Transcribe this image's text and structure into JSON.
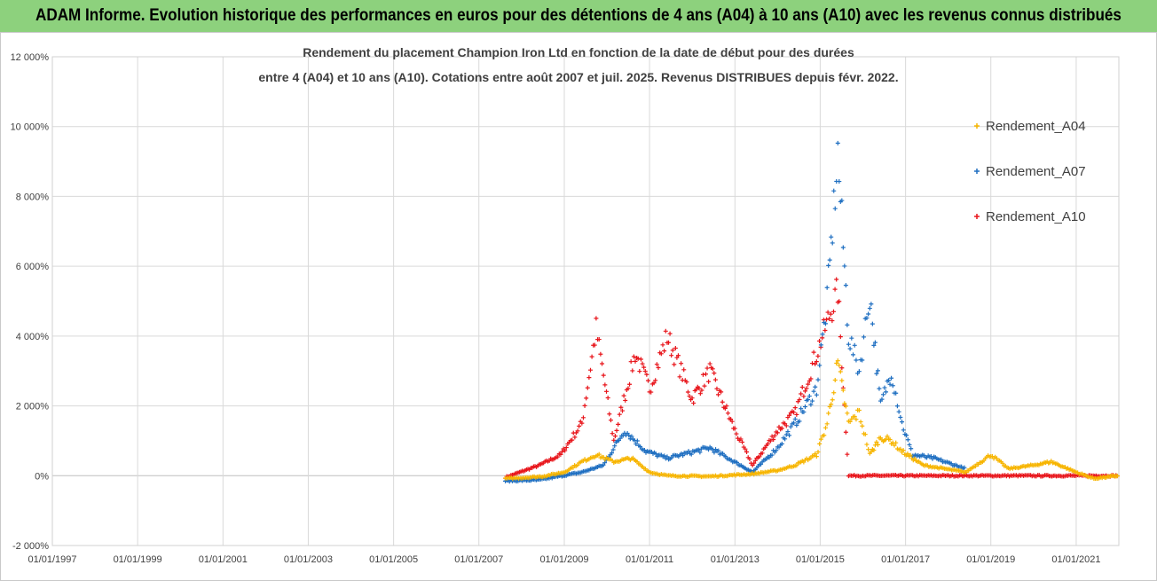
{
  "banner": {
    "title": "ADAM Informe. Evolution historique des performances en euros pour des détentions de 4 ans (A04) à 10 ans (A10) avec les revenus connus distribués"
  },
  "colors": {
    "banner_bg": "#8dd17d",
    "A04": "#f7b500",
    "A07": "#1f6fc1",
    "A10": "#e8151b",
    "grid": "#d9d9d9"
  },
  "chart_data": {
    "type": "scatter",
    "title_lines": [
      "Rendement du placement Champion Iron Ltd en fonction de la date de début pour des durées",
      "entre 4 (A04) et 10 ans (A10). Cotations entre août 2007 et juil. 2025.  Revenus DISTRIBUES depuis févr. 2022."
    ],
    "xlabel": "",
    "ylabel": "",
    "x_tick_labels": [
      "01/01/1997",
      "01/01/1999",
      "01/01/2001",
      "01/01/2003",
      "01/01/2005",
      "01/01/2007",
      "01/01/2009",
      "01/01/2011",
      "01/01/2013",
      "01/01/2015",
      "01/01/2017",
      "01/01/2019",
      "01/01/2021"
    ],
    "y_tick_labels": [
      "-2 000%",
      "0%",
      "2 000%",
      "4 000%",
      "6 000%",
      "8 000%",
      "10 000%",
      "12 000%"
    ],
    "xlim": [
      "1997-01-01",
      "2022-01-01"
    ],
    "ylim": [
      -2000,
      12000
    ],
    "grid": true,
    "legend_position": "top-right",
    "series": [
      {
        "name": "Rendement_A04",
        "points": [
          [
            "2007-08-15",
            -80
          ],
          [
            "2008-01-01",
            -60
          ],
          [
            "2008-07-01",
            -20
          ],
          [
            "2009-01-01",
            100
          ],
          [
            "2009-06-01",
            400
          ],
          [
            "2009-10-01",
            600
          ],
          [
            "2010-03-01",
            400
          ],
          [
            "2010-08-01",
            500
          ],
          [
            "2011-01-01",
            100
          ],
          [
            "2011-06-01",
            0
          ],
          [
            "2012-06-01",
            -20
          ],
          [
            "2013-06-01",
            50
          ],
          [
            "2014-01-01",
            150
          ],
          [
            "2014-06-01",
            300
          ],
          [
            "2014-12-01",
            600
          ],
          [
            "2015-03-01",
            1500
          ],
          [
            "2015-06-01",
            3200
          ],
          [
            "2015-09-01",
            1500
          ],
          [
            "2015-12-01",
            1800
          ],
          [
            "2016-03-01",
            600
          ],
          [
            "2016-06-01",
            1100
          ],
          [
            "2016-09-01",
            1000
          ],
          [
            "2016-12-01",
            700
          ],
          [
            "2017-06-01",
            300
          ],
          [
            "2018-06-01",
            100
          ],
          [
            "2019-01-01",
            600
          ],
          [
            "2019-06-01",
            200
          ],
          [
            "2020-01-01",
            300
          ],
          [
            "2020-06-01",
            400
          ],
          [
            "2021-01-01",
            100
          ],
          [
            "2021-06-01",
            -80
          ],
          [
            "2022-01-01",
            0
          ]
        ]
      },
      {
        "name": "Rendement_A07",
        "points": [
          [
            "2007-08-15",
            -150
          ],
          [
            "2008-06-01",
            -120
          ],
          [
            "2009-06-01",
            100
          ],
          [
            "2009-12-01",
            300
          ],
          [
            "2010-06-01",
            1300
          ],
          [
            "2010-12-01",
            700
          ],
          [
            "2011-06-01",
            500
          ],
          [
            "2012-06-01",
            800
          ],
          [
            "2013-06-01",
            100
          ],
          [
            "2014-01-01",
            800
          ],
          [
            "2014-06-01",
            1500
          ],
          [
            "2014-12-01",
            2500
          ],
          [
            "2015-03-01",
            5000
          ],
          [
            "2015-06-01",
            9200
          ],
          [
            "2015-09-01",
            4000
          ],
          [
            "2015-12-01",
            3000
          ],
          [
            "2016-03-01",
            5200
          ],
          [
            "2016-06-01",
            2000
          ],
          [
            "2016-09-01",
            3000
          ],
          [
            "2016-12-01",
            1500
          ],
          [
            "2017-03-01",
            600
          ],
          [
            "2017-09-01",
            500
          ],
          [
            "2018-06-01",
            200
          ]
        ]
      },
      {
        "name": "Rendement_A10",
        "points": [
          [
            "2007-08-15",
            -50
          ],
          [
            "2008-06-01",
            300
          ],
          [
            "2008-12-01",
            600
          ],
          [
            "2009-06-01",
            1500
          ],
          [
            "2009-10-01",
            4200
          ],
          [
            "2010-03-01",
            1000
          ],
          [
            "2010-09-01",
            3500
          ],
          [
            "2011-01-01",
            2500
          ],
          [
            "2011-06-01",
            4000
          ],
          [
            "2012-01-01",
            2200
          ],
          [
            "2012-06-01",
            3000
          ],
          [
            "2013-01-01",
            1300
          ],
          [
            "2013-06-01",
            300
          ],
          [
            "2014-01-01",
            1300
          ],
          [
            "2014-06-01",
            1800
          ],
          [
            "2014-12-01",
            3500
          ],
          [
            "2015-06-01",
            5300
          ],
          [
            "2015-09-01",
            0
          ],
          [
            "2017-01-01",
            0
          ],
          [
            "2019-01-01",
            0
          ],
          [
            "2021-01-01",
            0
          ],
          [
            "2022-01-01",
            0
          ]
        ]
      }
    ]
  }
}
